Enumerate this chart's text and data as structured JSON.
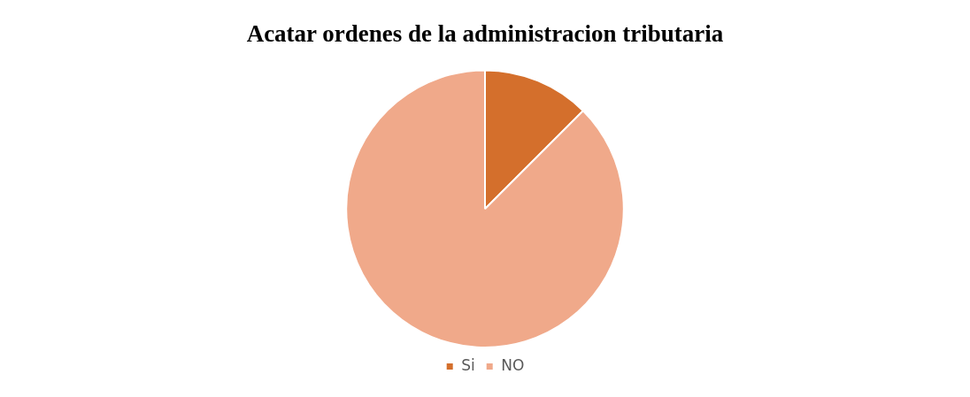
{
  "chart_data": {
    "type": "pie",
    "title": "Acatar ordenes de la administracion tributaria",
    "categories": [
      "Si",
      "NO"
    ],
    "values": [
      12.5,
      87.5
    ],
    "colors": [
      "#d46f2c",
      "#f0a98a"
    ],
    "legend": "bottom"
  }
}
